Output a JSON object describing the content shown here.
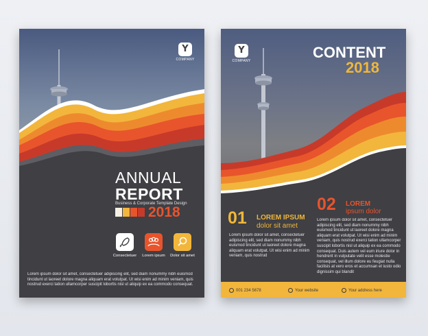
{
  "colors": {
    "dark": "#3f3f44",
    "orange": "#e8542c",
    "red": "#c73a2a",
    "yellow": "#f2b63c",
    "accent_text": "#f0b73a"
  },
  "left_page": {
    "logo": {
      "mark": "Y",
      "text": "COMPANY"
    },
    "title_line1": "ANNUAL",
    "title_line2": "REPORT",
    "subtitle": "Business & Corporate Template Design",
    "year": "2018",
    "icons": [
      {
        "icon": "rocket-icon",
        "label": "Consectetuer"
      },
      {
        "icon": "people-icon",
        "label": "Lorem ipsum"
      },
      {
        "icon": "magnifier-icon",
        "label": "Dolor sit amet"
      }
    ],
    "body": "Lorem ipsum dolor sit amet, consectetuer adipiscing elit, sed diam nonummy nibh euismod tincidunt ut laoreet dolore magna aliquam erat volutpat. Ut wisi enim ad minim veniam, quis nostrud exerci tation ullamcorper suscipit lobortis nisl ut aliquip ex ea commodo consequat."
  },
  "right_page": {
    "logo": {
      "mark": "Y",
      "text": "COMPANY"
    },
    "title": "CONTENT",
    "year": "2018",
    "section1": {
      "number": "01",
      "heading_line1": "LOREM IPSUM",
      "heading_line2": "dolor sit amet",
      "body": "Lorem ipsum dolor sit amet, consectetuer adipiscing elit, sed diam nonummy nibh euismod tincidunt ut laoreet dolore magna aliquam erat volutpat. Ut wisi enim ad minim veniam, quis nostrud"
    },
    "section2": {
      "number": "02",
      "heading_line1": "LOREM",
      "heading_line2": "ipsum dolor",
      "body": "Lorem ipsum dolor sit amet, consectetuer adipiscing elit, sed diam nonummy nibh euismod tincidunt ut laoreet dolore magna aliquam erat volutpat. Ut wisi enim ad minim veniam, quis nostrud exerci tation ullamcorper suscipit lobortis nisl ut aliquip ex ea commodo consequat. Duis autem vel eum iriure dolor in hendrerit in vulputate velit esse molestie consequat, vel illum dolore eu feugiat nulla facilisis at vero eros et accumsan et iusto odio dignissim qui blandit"
    },
    "footer": {
      "phone": "001 234 5678",
      "website": "Your website",
      "address": "Your address here"
    }
  }
}
